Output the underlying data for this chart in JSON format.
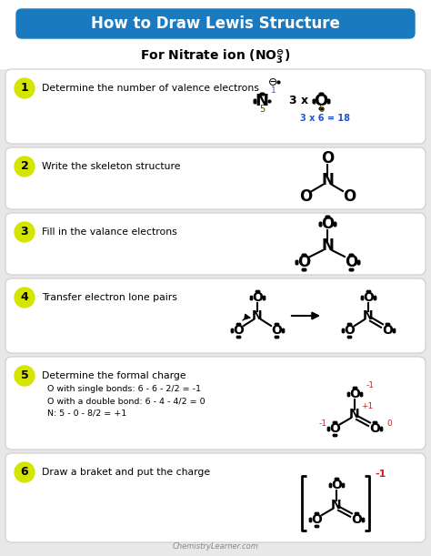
{
  "title": "How to Draw Lewis Structure",
  "title_bg": "#1a7abf",
  "title_color": "white",
  "background": "#e8e8e8",
  "card_bg": "white",
  "step_circle_color": "#d4e600",
  "footer": "ChemistryLearner.com",
  "steps": [
    {
      "num": "1",
      "text": "Determine the number of valence electrons",
      "subtext": []
    },
    {
      "num": "2",
      "text": "Write the skeleton structure",
      "subtext": []
    },
    {
      "num": "3",
      "text": "Fill in the valance electrons",
      "subtext": []
    },
    {
      "num": "4",
      "text": "Transfer electron lone pairs",
      "subtext": []
    },
    {
      "num": "5",
      "text": "Determine the formal charge",
      "subtext": [
        "O with single bonds: 6 - 6 - 2/2 = -1",
        "O with a double bond: 6 - 4 - 4/2 = 0",
        "N: 5 - 0 - 8/2 = +1"
      ]
    },
    {
      "num": "6",
      "text": "Draw a braket and put the charge",
      "subtext": []
    }
  ]
}
